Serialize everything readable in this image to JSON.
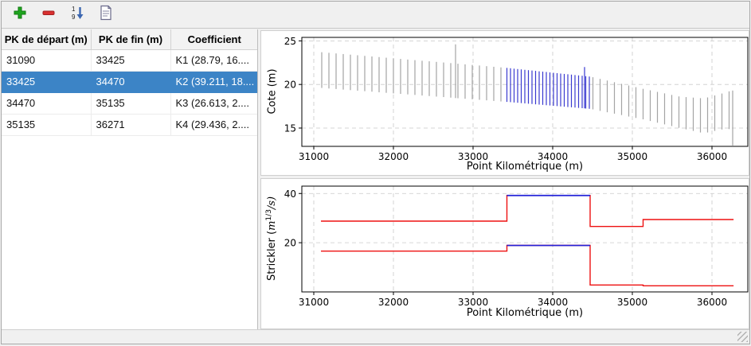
{
  "colors": {
    "selection": "#3c84c6",
    "bar_normal": "#a4a4a4",
    "bar_selected": "#3a3ad0",
    "step_normal": "#ee1111",
    "step_selected": "#2222d8",
    "grid": "#c9c9c9"
  },
  "toolbar": {
    "icons": [
      "plus-icon",
      "minus-icon",
      "sort-numeric-icon",
      "document-icon"
    ],
    "sort_icon": {
      "top_digit": "1",
      "bottom_digit": "9"
    }
  },
  "table": {
    "headers": [
      "PK de départ (m)",
      "PK de fin (m)",
      "Coefficient"
    ],
    "rows": [
      {
        "pk_start": "31090",
        "pk_end": "33425",
        "coefficient": "K1 (28.79, 16....",
        "selected": false
      },
      {
        "pk_start": "33425",
        "pk_end": "34470",
        "coefficient": "K2 (39.211, 18....",
        "selected": true
      },
      {
        "pk_start": "34470",
        "pk_end": "35135",
        "coefficient": "K3 (26.613, 2....",
        "selected": false
      },
      {
        "pk_start": "35135",
        "pk_end": "36271",
        "coefficient": "K4 (29.436, 2....",
        "selected": false
      }
    ]
  },
  "chart_data": [
    {
      "type": "rangebar",
      "title": "",
      "xlabel": "Point Kilométrique (m)",
      "ylabel": "Cote (m)",
      "xlim": [
        30850,
        36450
      ],
      "ylim": [
        12.9,
        25.4
      ],
      "xticks": [
        31000,
        32000,
        33000,
        34000,
        35000,
        36000
      ],
      "yticks": [
        15,
        20,
        25
      ],
      "grid": true,
      "selected_range": [
        33425,
        34470
      ],
      "bars": [
        [
          31100,
          19.6,
          23.7
        ],
        [
          31190,
          19.54,
          23.63
        ],
        [
          31280,
          19.48,
          23.56
        ],
        [
          31370,
          19.41,
          23.49
        ],
        [
          31460,
          19.35,
          23.42
        ],
        [
          31550,
          19.29,
          23.35
        ],
        [
          31640,
          19.23,
          23.28
        ],
        [
          31730,
          19.17,
          23.21
        ],
        [
          31820,
          19.1,
          23.14
        ],
        [
          31910,
          19.04,
          23.07
        ],
        [
          32000,
          18.98,
          23.0
        ],
        [
          32090,
          18.92,
          22.93
        ],
        [
          32180,
          18.86,
          22.86
        ],
        [
          32270,
          18.8,
          22.79
        ],
        [
          32360,
          18.73,
          22.72
        ],
        [
          32450,
          18.67,
          22.66
        ],
        [
          32540,
          18.61,
          22.59
        ],
        [
          32630,
          18.55,
          22.52
        ],
        [
          32720,
          18.49,
          22.45
        ],
        [
          32780,
          18.44,
          24.6
        ],
        [
          32810,
          18.42,
          22.38
        ],
        [
          32900,
          18.36,
          22.31
        ],
        [
          32990,
          18.3,
          22.24
        ],
        [
          33080,
          18.24,
          22.17
        ],
        [
          33170,
          18.18,
          22.1
        ],
        [
          33260,
          18.11,
          22.03
        ],
        [
          33350,
          18.05,
          21.96
        ],
        [
          33425,
          18.0,
          21.9
        ],
        [
          33470,
          17.97,
          21.86
        ],
        [
          33515,
          17.93,
          21.81
        ],
        [
          33560,
          17.9,
          21.77
        ],
        [
          33605,
          17.86,
          21.73
        ],
        [
          33650,
          17.83,
          21.68
        ],
        [
          33695,
          17.79,
          21.64
        ],
        [
          33740,
          17.76,
          21.6
        ],
        [
          33785,
          17.72,
          21.56
        ],
        [
          33830,
          17.69,
          21.51
        ],
        [
          33875,
          17.66,
          21.47
        ],
        [
          33920,
          17.62,
          21.43
        ],
        [
          33965,
          17.59,
          21.38
        ],
        [
          34010,
          17.55,
          21.34
        ],
        [
          34055,
          17.52,
          21.3
        ],
        [
          34100,
          17.48,
          21.25
        ],
        [
          34145,
          17.45,
          21.21
        ],
        [
          34190,
          17.41,
          21.17
        ],
        [
          34235,
          17.38,
          21.13
        ],
        [
          34280,
          17.35,
          21.08
        ],
        [
          34325,
          17.31,
          21.04
        ],
        [
          34370,
          17.28,
          21.0
        ],
        [
          34400,
          17.26,
          22.0
        ],
        [
          34415,
          17.24,
          20.95
        ],
        [
          34460,
          17.21,
          20.91
        ],
        [
          34505,
          17.14,
          20.83
        ],
        [
          34595,
          16.97,
          20.64
        ],
        [
          34685,
          16.81,
          20.45
        ],
        [
          34775,
          16.65,
          20.26
        ],
        [
          34865,
          16.49,
          20.07
        ],
        [
          34955,
          16.32,
          19.88
        ],
        [
          35045,
          16.16,
          19.69
        ],
        [
          35135,
          16.0,
          19.5
        ],
        [
          35225,
          15.81,
          19.33
        ],
        [
          35315,
          15.61,
          19.15
        ],
        [
          35405,
          15.42,
          18.98
        ],
        [
          35495,
          15.23,
          18.8
        ],
        [
          35585,
          15.03,
          18.63
        ],
        [
          35675,
          14.85,
          18.55
        ],
        [
          35765,
          14.67,
          18.49
        ],
        [
          35855,
          14.49,
          18.43
        ],
        [
          35945,
          14.49,
          18.51
        ],
        [
          36035,
          14.67,
          18.74
        ],
        [
          36125,
          14.83,
          18.96
        ],
        [
          36215,
          14.88,
          19.21
        ],
        [
          36260,
          13.0,
          19.3
        ]
      ]
    },
    {
      "type": "step",
      "title": "",
      "xlabel": "Point Kilométrique (m)",
      "ylabel": "Strickler (m^{1/3}/s)",
      "ylabel_parts": {
        "pre": "Strickler (",
        "unit": "m",
        "sup": "1/3",
        "post": "/s)"
      },
      "xlim": [
        30850,
        36450
      ],
      "ylim": [
        0,
        43
      ],
      "xticks": [
        31000,
        32000,
        33000,
        34000,
        35000,
        36000
      ],
      "yticks": [
        20,
        40
      ],
      "grid": true,
      "selected_range": [
        33425,
        34470
      ],
      "series": [
        {
          "breakpoints": [
            31090,
            33425,
            34470,
            35135,
            36271
          ],
          "values": [
            28.79,
            39.211,
            26.613,
            29.436
          ]
        },
        {
          "breakpoints": [
            31090,
            33425,
            34470,
            35135,
            36271
          ],
          "values": [
            16.6,
            18.9,
            2.8,
            2.5
          ]
        }
      ]
    }
  ]
}
